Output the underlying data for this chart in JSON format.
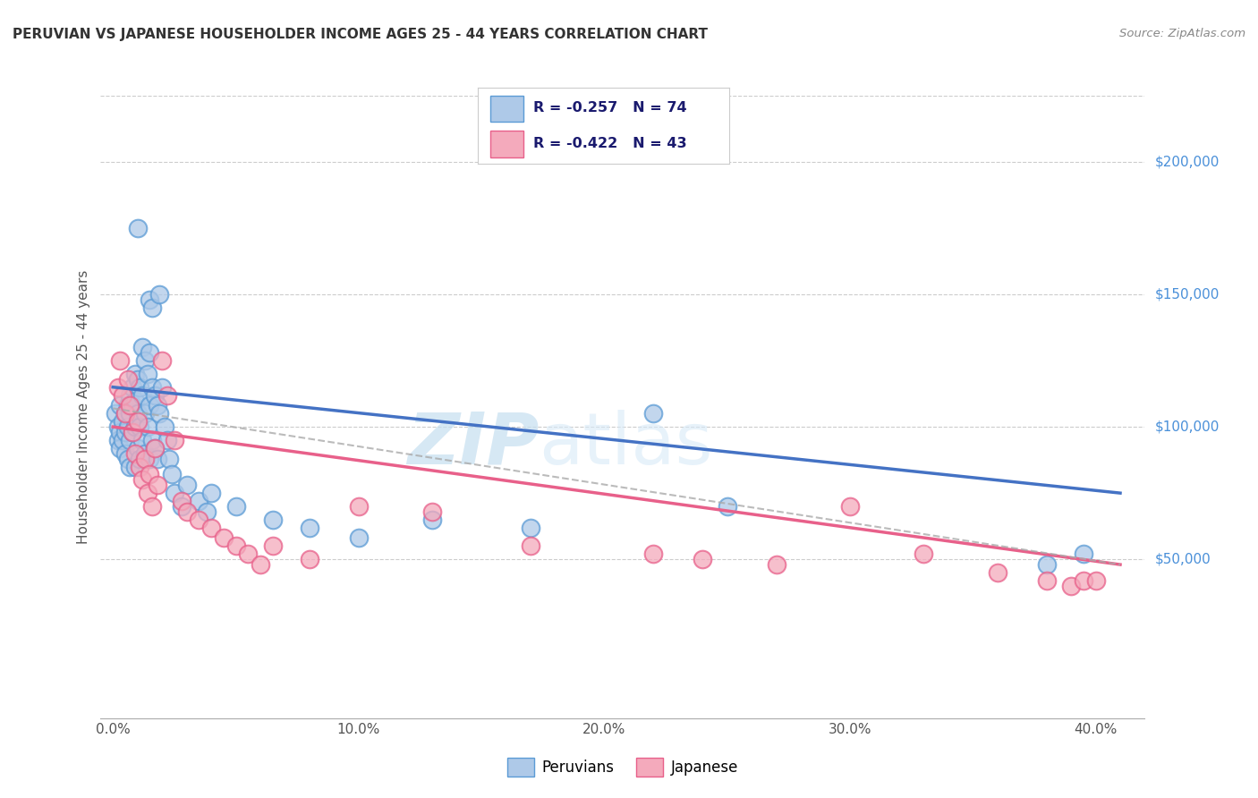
{
  "title": "PERUVIAN VS JAPANESE HOUSEHOLDER INCOME AGES 25 - 44 YEARS CORRELATION CHART",
  "source": "Source: ZipAtlas.com",
  "xlabel_ticks": [
    "0.0%",
    "10.0%",
    "20.0%",
    "30.0%",
    "40.0%"
  ],
  "xlabel_tick_vals": [
    0.0,
    0.1,
    0.2,
    0.3,
    0.4
  ],
  "ylabel_ticks": [
    "$50,000",
    "$100,000",
    "$150,000",
    "$200,000"
  ],
  "ylabel_tick_vals": [
    50000,
    100000,
    150000,
    200000
  ],
  "ylabel_label": "Householder Income Ages 25 - 44 years",
  "xlim": [
    -0.005,
    0.42
  ],
  "ylim": [
    -10000,
    225000
  ],
  "peruvian_color": "#aec9e8",
  "japanese_color": "#f4aabc",
  "peruvian_edge_color": "#5b9bd5",
  "japanese_edge_color": "#e8608a",
  "peruvian_line_color": "#4472c4",
  "japanese_line_color": "#e8608a",
  "watermark_color": "#cce4f5",
  "peruvian_r": -0.257,
  "japanese_r": -0.422,
  "peruvian_n": 74,
  "japanese_n": 43,
  "peruvian_line_y0": 115000,
  "peruvian_line_y1": 75000,
  "japanese_line_y0": 100000,
  "japanese_line_y1": 48000,
  "peruvian_scatter": [
    [
      0.001,
      105000
    ],
    [
      0.002,
      100000
    ],
    [
      0.002,
      95000
    ],
    [
      0.003,
      108000
    ],
    [
      0.003,
      98000
    ],
    [
      0.003,
      92000
    ],
    [
      0.004,
      102000
    ],
    [
      0.004,
      95000
    ],
    [
      0.005,
      105000
    ],
    [
      0.005,
      98000
    ],
    [
      0.005,
      90000
    ],
    [
      0.006,
      108000
    ],
    [
      0.006,
      100000
    ],
    [
      0.006,
      88000
    ],
    [
      0.007,
      112000
    ],
    [
      0.007,
      105000
    ],
    [
      0.007,
      95000
    ],
    [
      0.007,
      85000
    ],
    [
      0.008,
      115000
    ],
    [
      0.008,
      108000
    ],
    [
      0.008,
      98000
    ],
    [
      0.009,
      120000
    ],
    [
      0.009,
      110000
    ],
    [
      0.009,
      100000
    ],
    [
      0.009,
      85000
    ],
    [
      0.01,
      118000
    ],
    [
      0.01,
      105000
    ],
    [
      0.01,
      92000
    ],
    [
      0.011,
      115000
    ],
    [
      0.011,
      100000
    ],
    [
      0.011,
      88000
    ],
    [
      0.012,
      130000
    ],
    [
      0.012,
      112000
    ],
    [
      0.012,
      95000
    ],
    [
      0.013,
      125000
    ],
    [
      0.013,
      105000
    ],
    [
      0.013,
      90000
    ],
    [
      0.014,
      120000
    ],
    [
      0.014,
      100000
    ],
    [
      0.015,
      148000
    ],
    [
      0.015,
      128000
    ],
    [
      0.015,
      108000
    ],
    [
      0.015,
      88000
    ],
    [
      0.016,
      145000
    ],
    [
      0.016,
      115000
    ],
    [
      0.016,
      95000
    ],
    [
      0.017,
      112000
    ],
    [
      0.017,
      92000
    ],
    [
      0.018,
      108000
    ],
    [
      0.018,
      88000
    ],
    [
      0.019,
      150000
    ],
    [
      0.019,
      105000
    ],
    [
      0.02,
      115000
    ],
    [
      0.021,
      100000
    ],
    [
      0.022,
      95000
    ],
    [
      0.023,
      88000
    ],
    [
      0.024,
      82000
    ],
    [
      0.025,
      75000
    ],
    [
      0.028,
      70000
    ],
    [
      0.03,
      78000
    ],
    [
      0.035,
      72000
    ],
    [
      0.038,
      68000
    ],
    [
      0.04,
      75000
    ],
    [
      0.05,
      70000
    ],
    [
      0.065,
      65000
    ],
    [
      0.08,
      62000
    ],
    [
      0.1,
      58000
    ],
    [
      0.13,
      65000
    ],
    [
      0.17,
      62000
    ],
    [
      0.22,
      105000
    ],
    [
      0.25,
      70000
    ],
    [
      0.38,
      48000
    ],
    [
      0.395,
      52000
    ],
    [
      0.01,
      175000
    ]
  ],
  "japanese_scatter": [
    [
      0.002,
      115000
    ],
    [
      0.003,
      125000
    ],
    [
      0.004,
      112000
    ],
    [
      0.005,
      105000
    ],
    [
      0.006,
      118000
    ],
    [
      0.007,
      108000
    ],
    [
      0.008,
      98000
    ],
    [
      0.009,
      90000
    ],
    [
      0.01,
      102000
    ],
    [
      0.011,
      85000
    ],
    [
      0.012,
      80000
    ],
    [
      0.013,
      88000
    ],
    [
      0.014,
      75000
    ],
    [
      0.015,
      82000
    ],
    [
      0.016,
      70000
    ],
    [
      0.017,
      92000
    ],
    [
      0.018,
      78000
    ],
    [
      0.02,
      125000
    ],
    [
      0.022,
      112000
    ],
    [
      0.025,
      95000
    ],
    [
      0.028,
      72000
    ],
    [
      0.03,
      68000
    ],
    [
      0.035,
      65000
    ],
    [
      0.04,
      62000
    ],
    [
      0.045,
      58000
    ],
    [
      0.05,
      55000
    ],
    [
      0.055,
      52000
    ],
    [
      0.06,
      48000
    ],
    [
      0.065,
      55000
    ],
    [
      0.08,
      50000
    ],
    [
      0.1,
      70000
    ],
    [
      0.13,
      68000
    ],
    [
      0.17,
      55000
    ],
    [
      0.22,
      52000
    ],
    [
      0.24,
      50000
    ],
    [
      0.27,
      48000
    ],
    [
      0.3,
      70000
    ],
    [
      0.33,
      52000
    ],
    [
      0.36,
      45000
    ],
    [
      0.38,
      42000
    ],
    [
      0.39,
      40000
    ],
    [
      0.395,
      42000
    ],
    [
      0.4,
      42000
    ]
  ]
}
